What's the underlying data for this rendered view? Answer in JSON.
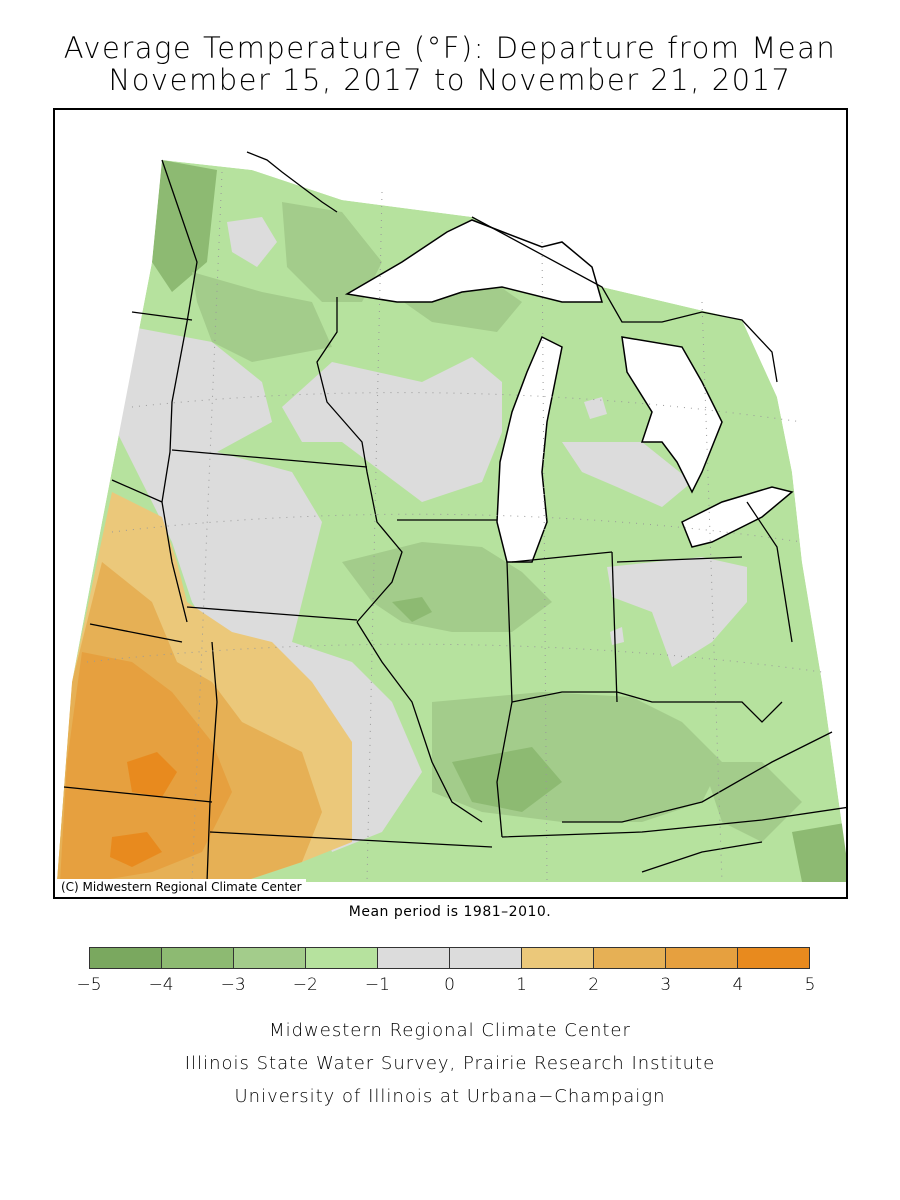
{
  "title": {
    "line1": "Average Temperature (°F): Departure from Mean",
    "line2": "November 15, 2017 to November 21, 2017"
  },
  "map": {
    "credit": "(C) Midwestern Regional Climate Center",
    "mean_period_note": "Mean period is 1981–2010."
  },
  "legend": {
    "bins": [
      {
        "from": -5,
        "to": -4,
        "color": "#7aa85f"
      },
      {
        "from": -4,
        "to": -3,
        "color": "#8dba72"
      },
      {
        "from": -3,
        "to": -2,
        "color": "#a3cc8b"
      },
      {
        "from": -2,
        "to": -1,
        "color": "#b6e29e"
      },
      {
        "from": -1,
        "to": 0,
        "color": "#dcdcdc"
      },
      {
        "from": 0,
        "to": 1,
        "color": "#dcdcdc"
      },
      {
        "from": 1,
        "to": 2,
        "color": "#ebc87a"
      },
      {
        "from": 2,
        "to": 3,
        "color": "#e6b055"
      },
      {
        "from": 3,
        "to": 4,
        "color": "#e6a03f"
      },
      {
        "from": 4,
        "to": 5,
        "color": "#e88a1e"
      }
    ],
    "tick_labels": [
      "−5",
      "−4",
      "−3",
      "−2",
      "−1",
      "0",
      "1",
      "2",
      "3",
      "4",
      "5"
    ]
  },
  "footer": {
    "line1": "Midwestern Regional Climate Center",
    "line2": "Illinois State Water Survey, Prairie Research Institute",
    "line3": "University of Illinois at Urbana−Champaign"
  },
  "colors": {
    "lake": "#ffffff",
    "border": "#000000",
    "out_of_domain": "#ffffff"
  }
}
